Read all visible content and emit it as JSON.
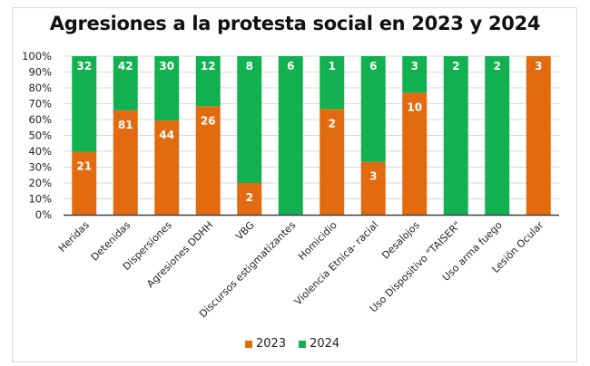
{
  "chart_data": {
    "type": "bar",
    "stacked": "percent",
    "title": "Agresiones a la protesta social en 2023 y 2024",
    "xlabel": "",
    "ylabel": "",
    "ylim": [
      0,
      100
    ],
    "yticks": [
      "0%",
      "10%",
      "20%",
      "30%",
      "40%",
      "50%",
      "60%",
      "70%",
      "80%",
      "90%",
      "100%"
    ],
    "grid": true,
    "legend": "bottom",
    "categories": [
      "Heridas",
      "Detenidas",
      "Dispersiones",
      "Agresiones DDHH",
      "VBG",
      "Discursos estigmatizantes",
      "Homicidio",
      "Violencia Etnica- racial",
      "Desalojos",
      "Uso Dispositivo \"TAISER\"",
      "Uso arma fuego",
      "Lesión Ocular"
    ],
    "series": [
      {
        "name": "2023",
        "color": "#e26b10",
        "values": [
          21,
          81,
          44,
          26,
          2,
          0,
          2,
          3,
          10,
          0,
          0,
          3
        ]
      },
      {
        "name": "2024",
        "color": "#12b050",
        "values": [
          32,
          42,
          30,
          12,
          8,
          6,
          1,
          6,
          3,
          2,
          2,
          0
        ]
      }
    ]
  }
}
